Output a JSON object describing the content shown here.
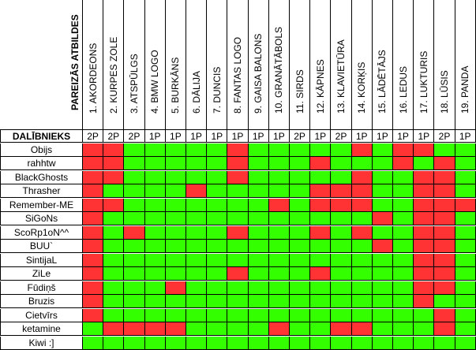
{
  "header": {
    "corner_label": "PAREIZĀS ATBILDES",
    "items": [
      "1. AKORDEONS",
      "2. KURPES ZOLE",
      "3. ATSPŪLGS",
      "4. BMW LOGO",
      "5. BURKĀNS",
      "6. DĀLIJA",
      "7. DUNCIS",
      "8. FANTAS LOGO",
      "9. GAISA BALONS",
      "10. GRANĀTĀBOLS",
      "11. SIRDS",
      "12. KĀPNES",
      "13. KLAVIETŪRA",
      "14. KORĶIS",
      "15. LĀDĒTĀJS",
      "16. LEDUS",
      "17. LUKTURIS",
      "18. LŪSIS",
      "19. PANDA"
    ]
  },
  "points_row": {
    "label": "DALĪBNIEKS",
    "values": [
      "2P",
      "2P",
      "2P",
      "1P",
      "1P",
      "1P",
      "1P",
      "1P",
      "1P",
      "1P",
      "2P",
      "1P",
      "2P",
      "1P",
      "1P",
      "1P",
      "1P",
      "2P",
      "1P"
    ]
  },
  "participants": [
    {
      "name": "Obijs",
      "cells": "RRGGGGGRGGGGGRGRRGG"
    },
    {
      "name": "rahhtw",
      "cells": "RRGGGGGRGGGRGGGRGRG"
    },
    {
      "name": "BlackGhosts",
      "cells": "RRGGGGGRGGGGGRGGRRG"
    },
    {
      "name": "Thrasher",
      "cells": "RGGGGRGGGGGRRRGGRRG"
    },
    {
      "name": "Remember-ME",
      "cells": "RRGGGGGGGRGRRRGGRRR"
    },
    {
      "name": "SiGoNs",
      "cells": "RGGGGGGGGGGGGGRGRRG"
    },
    {
      "name": "ScoRp1oN^^",
      "cells": "RGRGGGGRGGGRGRGGRRG"
    },
    {
      "name": "BUU`",
      "cells": "RGGGGGGGGGGGGGRGRRG"
    },
    {
      "name": "SintijaL",
      "cells": "RGGGGGGGGGGGGGGGRRG"
    },
    {
      "name": "ZiLe",
      "cells": "RGGGGGGRGGGRGGGGRRG"
    },
    {
      "name": "Fūdiņš",
      "cells": "RGGGRGGGGGGGGGGGRRG"
    },
    {
      "name": "Bruzis",
      "cells": "RGGGGGGGGGGGGGGGRGG"
    },
    {
      "name": "Cietvīrs",
      "cells": "RGGGGGGGGGGGGGGGGRG"
    },
    {
      "name": "ketamine",
      "cells": "GRRRRGGGGRGGRRGGGRG"
    },
    {
      "name": "Kiwi :]",
      "cells": "GGGGGGGGGGGGGGGGGGG"
    }
  ],
  "colors": {
    "correct": "#33ff00",
    "wrong": "#ff3333"
  }
}
